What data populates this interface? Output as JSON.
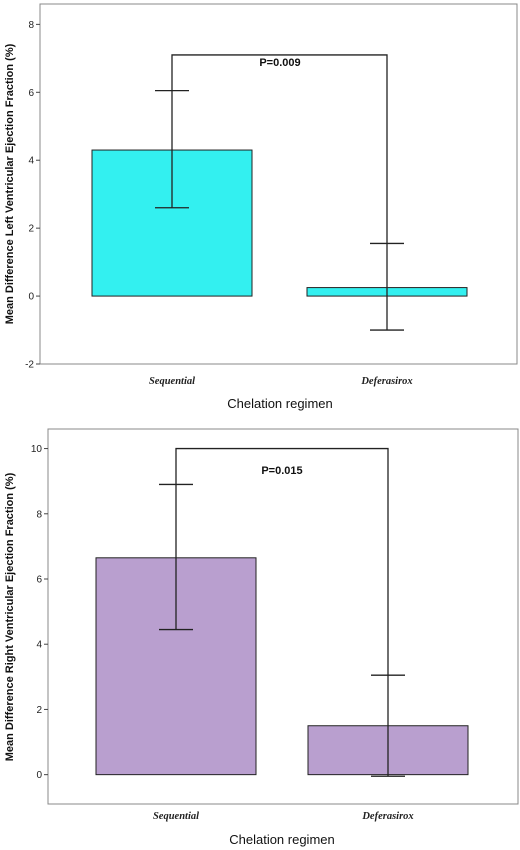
{
  "chart_data": [
    {
      "type": "bar",
      "categories": [
        "Sequential",
        "Deferasirox"
      ],
      "values": [
        4.3,
        0.25
      ],
      "error_low": [
        2.6,
        -1.0
      ],
      "error_high": [
        6.05,
        1.55
      ],
      "bar_color": "#33f0f0",
      "annotation": "P=0.009",
      "bracket_y": 7.1,
      "xlabel": "Chelation regimen",
      "ylabel": "Mean Difference Left Ventricular Ejection Fraction (%)",
      "ylim": [
        -2,
        8.6
      ],
      "yticks": [
        -2,
        0,
        2,
        4,
        6,
        8
      ],
      "ytick_labels": [
        "-2",
        "0",
        "2",
        "4",
        "6",
        "8"
      ]
    },
    {
      "type": "bar",
      "categories": [
        "Sequential",
        "Deferasirox"
      ],
      "values": [
        6.65,
        1.5
      ],
      "error_low": [
        4.45,
        -0.05
      ],
      "error_high": [
        8.9,
        3.05
      ],
      "bar_color": "#b99fcf",
      "annotation": "P=0.015",
      "bracket_y": 10.0,
      "xlabel": "Chelation regimen",
      "ylabel": "Mean Difference Right Ventricular Ejection Fraction (%)",
      "ylim": [
        -0.9,
        10.6
      ],
      "yticks": [
        0,
        2,
        4,
        6,
        8,
        10
      ],
      "ytick_labels": [
        "0",
        "2",
        "4",
        "6",
        "8",
        "10"
      ]
    }
  ]
}
